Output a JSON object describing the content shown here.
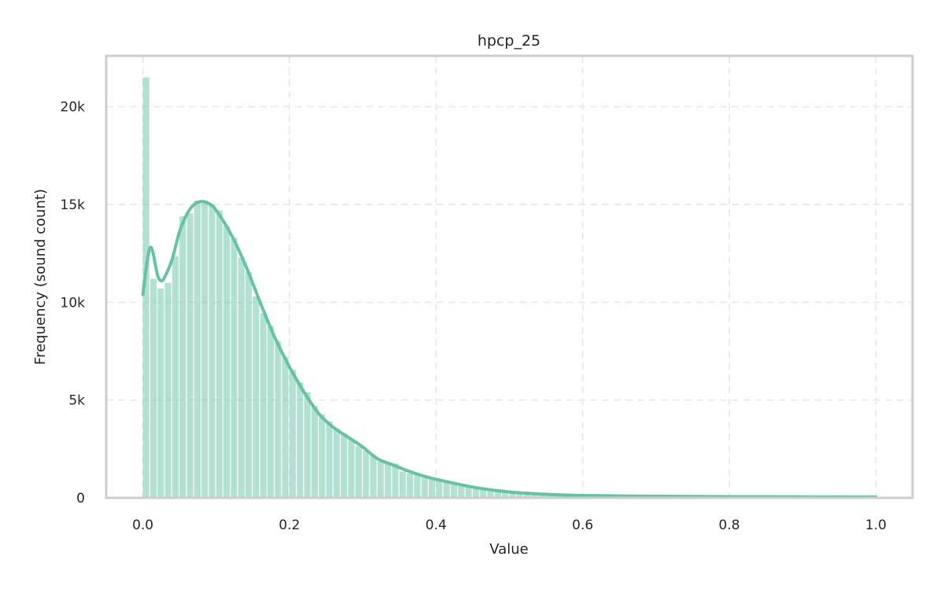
{
  "chart_data": {
    "type": "bar",
    "title": "hpcp_25",
    "xlabel": "Value",
    "ylabel": "Frequency (sound count)",
    "xlim": [
      -0.05,
      1.05
    ],
    "ylim": [
      0,
      22600
    ],
    "grid": true,
    "bin_width": 0.01,
    "bar_color": "#66c2a5",
    "line_color": "#66c2a5",
    "frame_color": "#cccccc",
    "x_ticks": [
      {
        "value": 0,
        "label": "0.0"
      },
      {
        "value": 0.2,
        "label": "0.2"
      },
      {
        "value": 0.4,
        "label": "0.4"
      },
      {
        "value": 0.6,
        "label": "0.6"
      },
      {
        "value": 0.8,
        "label": "0.8"
      },
      {
        "value": 1.0,
        "label": "1.0"
      }
    ],
    "y_ticks": [
      {
        "value": 0,
        "label": "0"
      },
      {
        "value": 5000,
        "label": "5k"
      },
      {
        "value": 10000,
        "label": "10k"
      },
      {
        "value": 15000,
        "label": "15k"
      },
      {
        "value": 20000,
        "label": "20k"
      }
    ],
    "values": [
      21500,
      11200,
      10700,
      11000,
      12350,
      14400,
      14550,
      15200,
      15200,
      15000,
      14700,
      13900,
      13300,
      12300,
      11550,
      10300,
      9450,
      8800,
      8000,
      7200,
      6550,
      5900,
      5400,
      4700,
      4270,
      3900,
      3550,
      3300,
      3000,
      2650,
      2400,
      2200,
      1850,
      1750,
      1750,
      1350,
      1250,
      1200,
      1100,
      1000,
      950,
      800,
      750,
      680,
      600,
      520,
      450,
      400,
      350,
      300,
      280,
      250,
      220,
      180,
      150,
      120,
      110,
      100,
      95,
      90,
      85,
      80,
      78,
      75,
      72,
      70,
      68,
      66,
      64,
      62,
      60,
      58,
      56,
      55,
      54,
      53,
      52,
      51,
      50,
      49,
      48,
      47,
      46,
      45,
      44,
      43,
      42,
      41,
      40,
      40,
      39,
      38,
      37,
      36,
      35,
      35,
      34,
      33,
      32,
      32
    ],
    "kde": {
      "x": [
        0,
        0.01,
        0.02,
        0.025,
        0.03,
        0.04,
        0.05,
        0.06,
        0.07,
        0.08,
        0.09,
        0.1,
        0.12,
        0.14,
        0.16,
        0.18,
        0.2,
        0.22,
        0.24,
        0.26,
        0.28,
        0.3,
        0.32,
        0.34,
        0.36,
        0.38,
        0.4,
        0.45,
        0.5,
        0.55,
        0.6,
        0.7,
        0.8,
        0.9,
        1.0
      ],
      "y": [
        10400,
        12800,
        11400,
        11100,
        11300,
        12200,
        13600,
        14500,
        15000,
        15150,
        15050,
        14700,
        13500,
        11900,
        10000,
        8200,
        6700,
        5400,
        4300,
        3600,
        3100,
        2600,
        2000,
        1700,
        1400,
        1150,
        950,
        550,
        300,
        180,
        120,
        80,
        60,
        50,
        40
      ]
    }
  }
}
